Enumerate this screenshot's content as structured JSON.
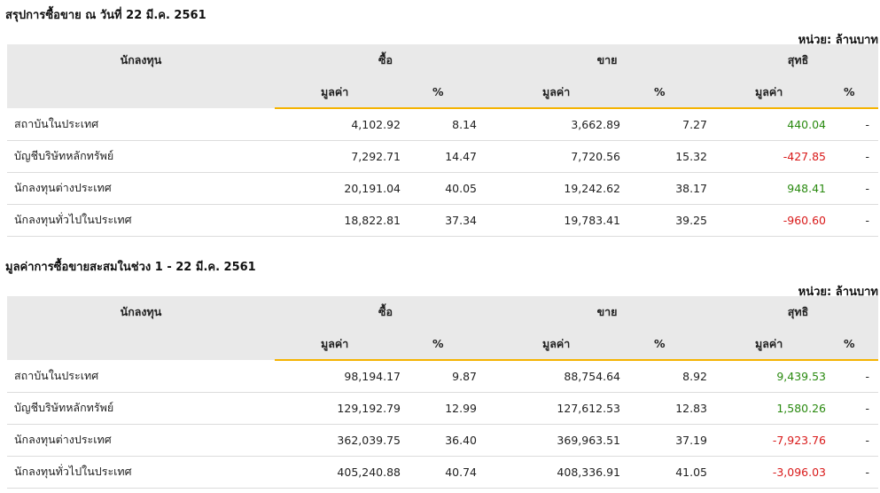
{
  "tables": [
    {
      "title": "สรุปการซื้อขาย ณ วันที่ 22 มี.ค. 2561",
      "unit": "หน่วย: ล้านบาท",
      "headers": {
        "investor": "นักลงทุน",
        "buy": "ซื้อ",
        "sell": "ขาย",
        "net": "สุทธิ",
        "value": "มูลค่า",
        "pct": "%"
      },
      "rows": [
        {
          "name": "สถาบันในประเทศ",
          "buy_value": "4,102.92",
          "buy_pct": "8.14",
          "sell_value": "3,662.89",
          "sell_pct": "7.27",
          "net_value": "440.04",
          "net_pct": "-",
          "net_sign": "pos"
        },
        {
          "name": "บัญชีบริษัทหลักทรัพย์",
          "buy_value": "7,292.71",
          "buy_pct": "14.47",
          "sell_value": "7,720.56",
          "sell_pct": "15.32",
          "net_value": "-427.85",
          "net_pct": "-",
          "net_sign": "neg"
        },
        {
          "name": "นักลงทุนต่างประเทศ",
          "buy_value": "20,191.04",
          "buy_pct": "40.05",
          "sell_value": "19,242.62",
          "sell_pct": "38.17",
          "net_value": "948.41",
          "net_pct": "-",
          "net_sign": "pos"
        },
        {
          "name": "นักลงทุนทั่วไปในประเทศ",
          "buy_value": "18,822.81",
          "buy_pct": "37.34",
          "sell_value": "19,783.41",
          "sell_pct": "39.25",
          "net_value": "-960.60",
          "net_pct": "-",
          "net_sign": "neg"
        }
      ]
    },
    {
      "title": "มูลค่าการซื้อขายสะสมในช่วง 1 - 22 มี.ค. 2561",
      "unit": "หน่วย: ล้านบาท",
      "headers": {
        "investor": "นักลงทุน",
        "buy": "ซื้อ",
        "sell": "ขาย",
        "net": "สุทธิ",
        "value": "มูลค่า",
        "pct": "%"
      },
      "rows": [
        {
          "name": "สถาบันในประเทศ",
          "buy_value": "98,194.17",
          "buy_pct": "9.87",
          "sell_value": "88,754.64",
          "sell_pct": "8.92",
          "net_value": "9,439.53",
          "net_pct": "-",
          "net_sign": "pos"
        },
        {
          "name": "บัญชีบริษัทหลักทรัพย์",
          "buy_value": "129,192.79",
          "buy_pct": "12.99",
          "sell_value": "127,612.53",
          "sell_pct": "12.83",
          "net_value": "1,580.26",
          "net_pct": "-",
          "net_sign": "pos"
        },
        {
          "name": "นักลงทุนต่างประเทศ",
          "buy_value": "362,039.75",
          "buy_pct": "36.40",
          "sell_value": "369,963.51",
          "sell_pct": "37.19",
          "net_value": "-7,923.76",
          "net_pct": "-",
          "net_sign": "neg"
        },
        {
          "name": "นักลงทุนทั่วไปในประเทศ",
          "buy_value": "405,240.88",
          "buy_pct": "40.74",
          "sell_value": "408,336.91",
          "sell_pct": "41.05",
          "net_value": "-3,096.03",
          "net_pct": "-",
          "net_sign": "neg"
        }
      ]
    }
  ]
}
